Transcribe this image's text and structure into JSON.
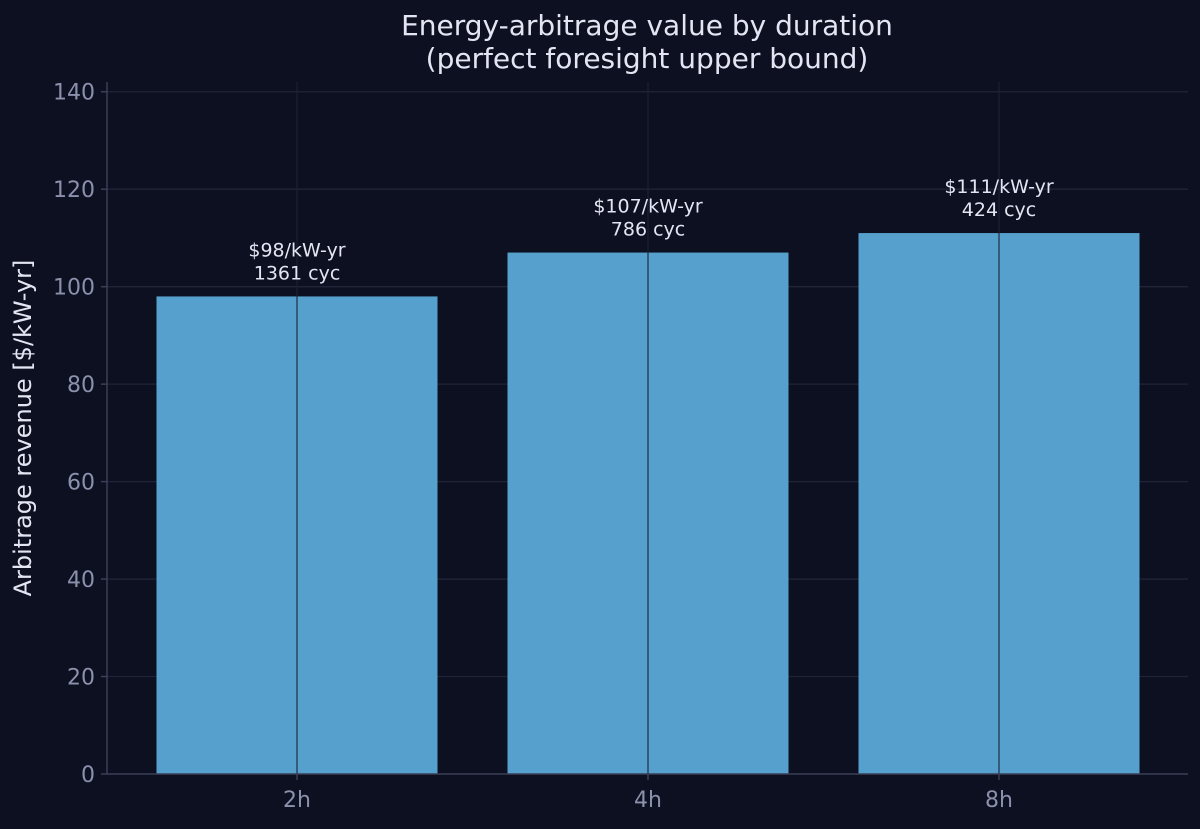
{
  "chart_data": {
    "type": "bar",
    "title_lines": [
      "Energy-arbitrage value by duration",
      "(perfect foresight upper bound)"
    ],
    "xlabel": "",
    "ylabel": "Arbitrage revenue [$/kW-yr]",
    "categories": [
      "2h",
      "4h",
      "8h"
    ],
    "values": [
      98,
      107,
      111
    ],
    "data_labels": [
      [
        "$98/kW-yr",
        "1361 cyc"
      ],
      [
        "$107/kW-yr",
        "786 cyc"
      ],
      [
        "$111/kW-yr",
        "424 cyc"
      ]
    ],
    "ylim": [
      0,
      142
    ],
    "yticks": [
      0,
      20,
      40,
      60,
      80,
      100,
      120,
      140
    ],
    "grid": true,
    "legend": "none",
    "colors": {
      "background": "#0d1020",
      "bar": "#56a0cd",
      "grid": "#1f2438",
      "axis": "#3a3f58",
      "text": "#e3e6f2",
      "tick_text": "#8b90ad"
    }
  }
}
